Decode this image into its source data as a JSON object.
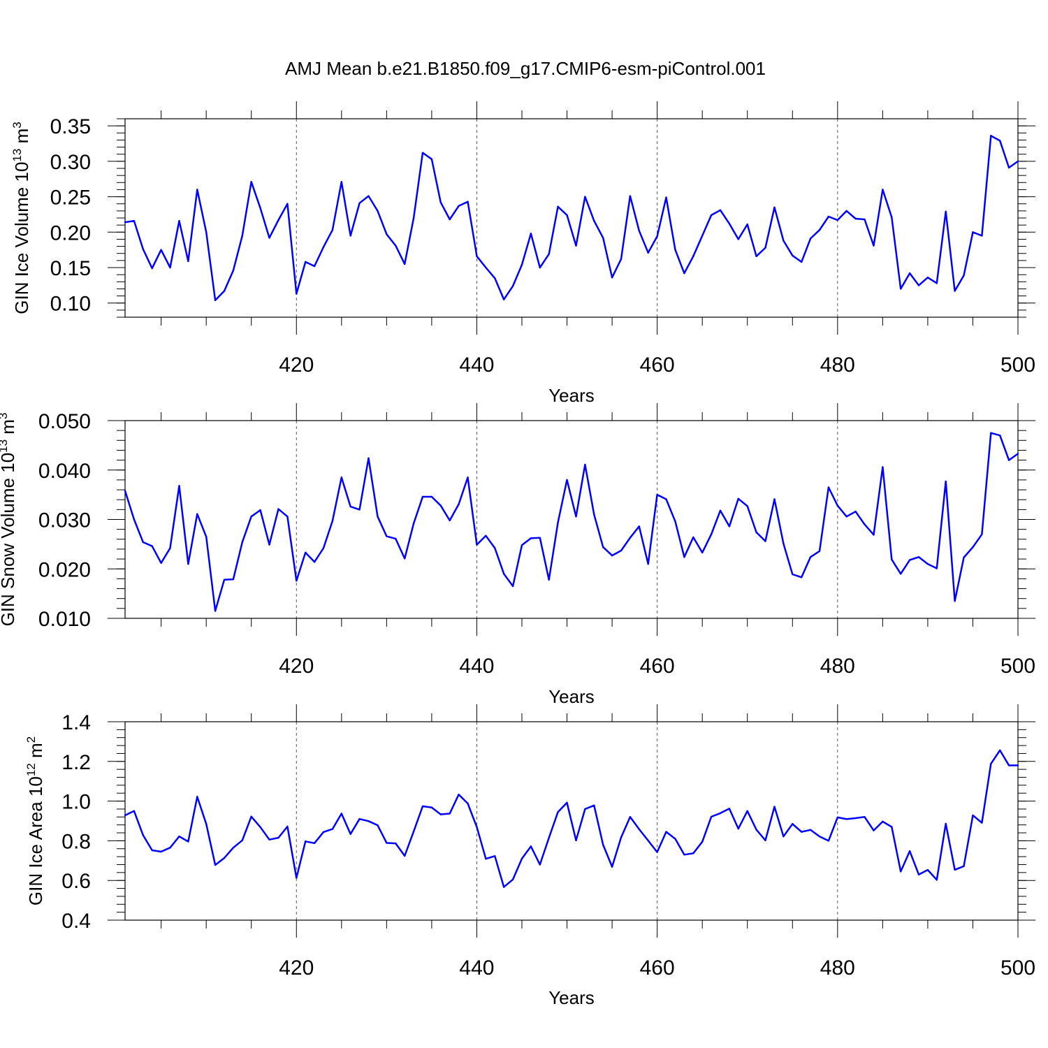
{
  "figure": {
    "title": "AMJ Mean b.e21.B1850.f09_g17.CMIP6-esm-piControl.001"
  },
  "chart_data": [
    {
      "type": "line",
      "xlabel": "Years",
      "ylabel_prefix": "GIN Ice Volume 10",
      "ylabel_exp": "13",
      "ylabel_unit": " m",
      "ylabel_unit_exp": "3",
      "xlim": [
        401,
        500
      ],
      "ylim": [
        0.08,
        0.36
      ],
      "x_ticks": [
        420,
        440,
        460,
        480,
        500
      ],
      "x_tick_labels": [
        "420",
        "440",
        "460",
        "480",
        "500"
      ],
      "y_ticks": [
        0.1,
        0.15,
        0.2,
        0.25,
        0.3,
        0.35
      ],
      "y_tick_labels": [
        "0.10",
        "0.15",
        "0.20",
        "0.25",
        "0.30",
        "0.35"
      ],
      "grid": "vertical dashed at major x ticks",
      "color": "#0000ff",
      "x_start": 401,
      "values": [
        0.214,
        0.216,
        0.176,
        0.149,
        0.175,
        0.15,
        0.216,
        0.159,
        0.26,
        0.2,
        0.104,
        0.117,
        0.146,
        0.195,
        0.271,
        0.234,
        0.192,
        0.217,
        0.24,
        0.113,
        0.158,
        0.152,
        0.179,
        0.203,
        0.271,
        0.195,
        0.241,
        0.251,
        0.23,
        0.197,
        0.181,
        0.155,
        0.22,
        0.312,
        0.303,
        0.242,
        0.218,
        0.237,
        0.243,
        0.166,
        0.15,
        0.135,
        0.105,
        0.124,
        0.154,
        0.198,
        0.15,
        0.169,
        0.236,
        0.224,
        0.181,
        0.25,
        0.216,
        0.192,
        0.136,
        0.162,
        0.251,
        0.202,
        0.171,
        0.194,
        0.249,
        0.175,
        0.142,
        0.166,
        0.195,
        0.224,
        0.231,
        0.212,
        0.19,
        0.211,
        0.166,
        0.178,
        0.235,
        0.188,
        0.167,
        0.158,
        0.191,
        0.203,
        0.222,
        0.217,
        0.23,
        0.219,
        0.218,
        0.181,
        0.26,
        0.221,
        0.12,
        0.142,
        0.125,
        0.136,
        0.128,
        0.229,
        0.117,
        0.139,
        0.2,
        0.195,
        0.336,
        0.329,
        0.291,
        0.3
      ]
    },
    {
      "type": "line",
      "xlabel": "Years",
      "ylabel_prefix": "GIN Snow Volume 10",
      "ylabel_exp": "13",
      "ylabel_unit": " m",
      "ylabel_unit_exp": "3",
      "xlim": [
        401,
        500
      ],
      "ylim": [
        0.01,
        0.05
      ],
      "x_ticks": [
        420,
        440,
        460,
        480,
        500
      ],
      "x_tick_labels": [
        "420",
        "440",
        "460",
        "480",
        "500"
      ],
      "y_ticks": [
        0.01,
        0.02,
        0.03,
        0.04,
        0.05
      ],
      "y_tick_labels": [
        "0.010",
        "0.020",
        "0.030",
        "0.040",
        "0.050"
      ],
      "grid": "vertical dashed at major x ticks",
      "color": "#0000ff",
      "x_start": 401,
      "values": [
        0.0358,
        0.03,
        0.0254,
        0.0246,
        0.0212,
        0.0242,
        0.0368,
        0.021,
        0.0311,
        0.0265,
        0.0115,
        0.0178,
        0.0179,
        0.0254,
        0.0306,
        0.0319,
        0.0249,
        0.0321,
        0.0306,
        0.0176,
        0.0233,
        0.0214,
        0.0242,
        0.0297,
        0.0385,
        0.0326,
        0.032,
        0.0424,
        0.0306,
        0.0266,
        0.0261,
        0.0221,
        0.0292,
        0.0346,
        0.0346,
        0.0328,
        0.0298,
        0.0331,
        0.0385,
        0.0249,
        0.0267,
        0.0242,
        0.019,
        0.0165,
        0.0248,
        0.0262,
        0.0263,
        0.0178,
        0.0294,
        0.038,
        0.0306,
        0.0411,
        0.031,
        0.0244,
        0.0227,
        0.0237,
        0.0263,
        0.0286,
        0.021,
        0.035,
        0.0341,
        0.0296,
        0.0224,
        0.0264,
        0.0233,
        0.027,
        0.0318,
        0.0286,
        0.0342,
        0.0327,
        0.0274,
        0.0256,
        0.0341,
        0.0251,
        0.0189,
        0.0183,
        0.0224,
        0.0236,
        0.0365,
        0.0328,
        0.0306,
        0.0316,
        0.029,
        0.0269,
        0.0406,
        0.0219,
        0.019,
        0.0218,
        0.0224,
        0.021,
        0.0201,
        0.0377,
        0.0135,
        0.0223,
        0.0244,
        0.027,
        0.0475,
        0.047,
        0.042,
        0.0433
      ]
    },
    {
      "type": "line",
      "xlabel": "Years",
      "ylabel_prefix": "GIN Ice Area 10",
      "ylabel_exp": "12",
      "ylabel_unit": " m",
      "ylabel_unit_exp": "2",
      "xlim": [
        401,
        500
      ],
      "ylim": [
        0.4,
        1.4
      ],
      "x_ticks": [
        420,
        440,
        460,
        480,
        500
      ],
      "x_tick_labels": [
        "420",
        "440",
        "460",
        "480",
        "500"
      ],
      "y_ticks": [
        0.4,
        0.6,
        0.8,
        1.0,
        1.2,
        1.4
      ],
      "y_tick_labels": [
        "0.4",
        "0.6",
        "0.8",
        "1.0",
        "1.2",
        "1.4"
      ],
      "grid": "vertical dashed at major x ticks",
      "color": "#0000ff",
      "x_start": 401,
      "values": [
        0.928,
        0.95,
        0.828,
        0.752,
        0.745,
        0.765,
        0.822,
        0.796,
        1.022,
        0.885,
        0.678,
        0.713,
        0.765,
        0.802,
        0.922,
        0.869,
        0.806,
        0.815,
        0.872,
        0.613,
        0.797,
        0.788,
        0.844,
        0.859,
        0.937,
        0.834,
        0.91,
        0.899,
        0.878,
        0.789,
        0.787,
        0.724,
        0.847,
        0.974,
        0.968,
        0.933,
        0.937,
        1.033,
        0.988,
        0.869,
        0.709,
        0.723,
        0.567,
        0.605,
        0.71,
        0.772,
        0.68,
        0.815,
        0.945,
        0.992,
        0.802,
        0.96,
        0.978,
        0.78,
        0.669,
        0.817,
        0.92,
        0.858,
        0.801,
        0.743,
        0.845,
        0.81,
        0.73,
        0.737,
        0.795,
        0.921,
        0.939,
        0.962,
        0.861,
        0.95,
        0.856,
        0.802,
        0.972,
        0.822,
        0.885,
        0.845,
        0.855,
        0.822,
        0.8,
        0.918,
        0.909,
        0.914,
        0.92,
        0.852,
        0.897,
        0.87,
        0.645,
        0.748,
        0.63,
        0.653,
        0.603,
        0.886,
        0.654,
        0.672,
        0.928,
        0.891,
        1.188,
        1.256,
        1.18,
        1.18
      ]
    }
  ]
}
